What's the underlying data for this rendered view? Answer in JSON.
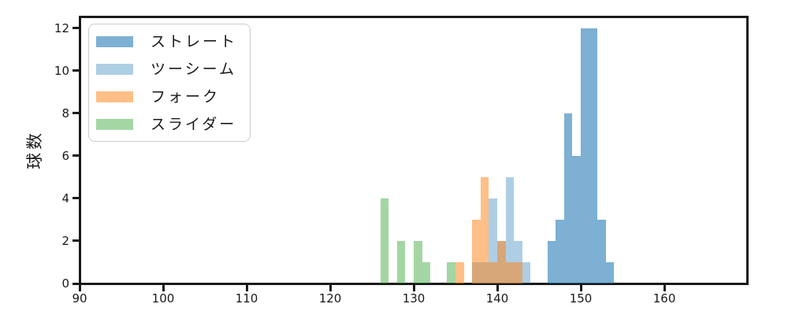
{
  "chart_data": {
    "type": "histogram",
    "title": "",
    "xlabel": "",
    "ylabel": "球数",
    "xlim": [
      90,
      169.9
    ],
    "ylim": [
      0,
      12.55
    ],
    "x_ticks": [
      90,
      100,
      110,
      120,
      130,
      140,
      150,
      160
    ],
    "y_ticks": [
      0,
      2,
      4,
      6,
      8,
      10,
      12
    ],
    "bin_width": 1,
    "grid": false,
    "background_color": "#ffffff",
    "axis_color": "#1a1a1a",
    "legend_position": "upper-left",
    "series": [
      {
        "id": "straight",
        "name": "ストレート",
        "color": "rgba(31,119,180,0.58)",
        "bins": [
          [
            146,
            2
          ],
          [
            147,
            3
          ],
          [
            148,
            8
          ],
          [
            149,
            6
          ],
          [
            150,
            12
          ],
          [
            151,
            12
          ],
          [
            152,
            3
          ],
          [
            153,
            1
          ]
        ]
      },
      {
        "id": "two-seam",
        "name": "ツーシーム",
        "color": "rgba(31,119,180,0.36)",
        "bins": [
          [
            137,
            1
          ],
          [
            138,
            1
          ],
          [
            139,
            4
          ],
          [
            140,
            2
          ],
          [
            141,
            5
          ],
          [
            142,
            2
          ],
          [
            143,
            1
          ]
        ]
      },
      {
        "id": "fork",
        "name": "フォーク",
        "color": "rgba(255,127,14,0.5)",
        "bins": [
          [
            135,
            1
          ],
          [
            137,
            3
          ],
          [
            138,
            5
          ],
          [
            139,
            1
          ],
          [
            140,
            2
          ],
          [
            141,
            1
          ],
          [
            142,
            1
          ]
        ]
      },
      {
        "id": "slider",
        "name": "スライダー",
        "color": "rgba(44,160,44,0.43)",
        "bins": [
          [
            126,
            4
          ],
          [
            128,
            2
          ],
          [
            130,
            2
          ],
          [
            131,
            1
          ],
          [
            134,
            1
          ]
        ]
      }
    ]
  }
}
